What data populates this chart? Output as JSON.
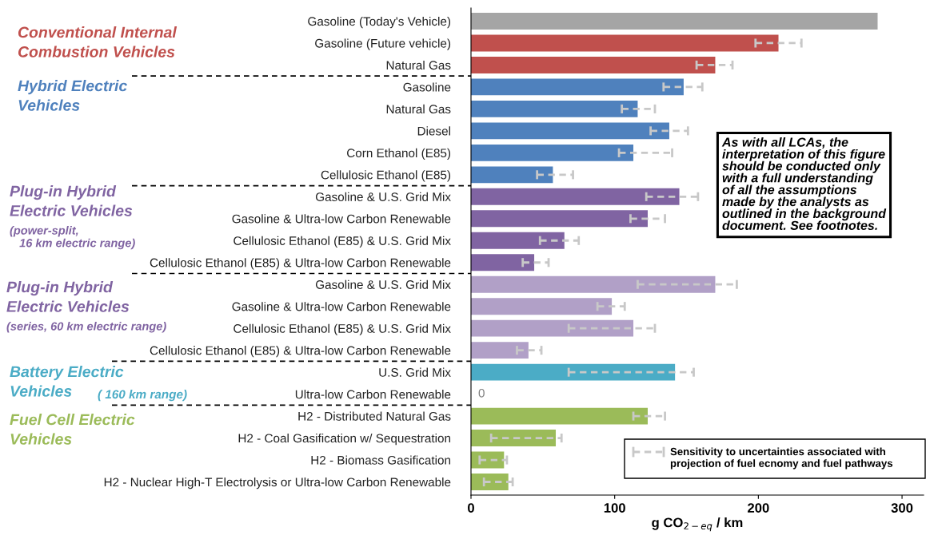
{
  "chart_data": {
    "type": "bar",
    "orientation": "horizontal",
    "categories": [
      "Gasoline (Today's Vehicle)",
      "Gasoline (Future vehicle)",
      "Natural Gas",
      "Gasoline",
      "Natural Gas",
      "Diesel",
      "Corn Ethanol (E85)",
      "Cellulosic Ethanol (E85)",
      "Gasoline & U.S. Grid Mix",
      "Gasoline & Ultra-low Carbon Renewable",
      "Cellulosic Ethanol (E85) & U.S. Grid Mix",
      "Cellulosic Ethanol (E85) & Ultra-low Carbon Renewable",
      "Gasoline & U.S. Grid Mix",
      "Gasoline & Ultra-low Carbon Renewable",
      "Cellulosic Ethanol (E85) & U.S. Grid Mix",
      "Cellulosic Ethanol (E85) & Ultra-low Carbon Renewable",
      "U.S. Grid Mix",
      "Ultra-low Carbon Renewable",
      "H2 - Distributed Natural Gas",
      "H2 - Coal Gasification w/ Sequestration",
      "H2 - Biomass Gasification",
      "H2 - Nuclear High-T Electrolysis or Ultra-low Carbon Renewable"
    ],
    "values": [
      283,
      214,
      170,
      148,
      116,
      138,
      113,
      57,
      145,
      123,
      65,
      44,
      170,
      98,
      113,
      40,
      142,
      0,
      123,
      59,
      23,
      26
    ],
    "errors": [
      null,
      [
        198,
        230
      ],
      [
        157,
        182
      ],
      [
        134,
        161
      ],
      [
        105,
        128
      ],
      [
        125,
        151
      ],
      [
        103,
        140
      ],
      [
        46,
        71
      ],
      [
        122,
        158
      ],
      [
        111,
        135
      ],
      [
        48,
        75
      ],
      [
        36,
        54
      ],
      [
        116,
        185
      ],
      [
        88,
        107
      ],
      [
        68,
        128
      ],
      [
        32,
        49
      ],
      [
        68,
        155
      ],
      null,
      [
        113,
        135
      ],
      [
        14,
        63
      ],
      [
        6,
        25
      ],
      [
        9,
        29
      ]
    ],
    "colors": [
      "#a5a5a5",
      "#c0504d",
      "#c0504d",
      "#4f81bd",
      "#4f81bd",
      "#4f81bd",
      "#4f81bd",
      "#4f81bd",
      "#8064a2",
      "#8064a2",
      "#8064a2",
      "#8064a2",
      "#b1a0c7",
      "#b1a0c7",
      "#b1a0c7",
      "#b1a0c7",
      "#4bacc6",
      "#4bacc6",
      "#9bbb59",
      "#9bbb59",
      "#9bbb59",
      "#9bbb59"
    ],
    "value_labels": [
      null,
      null,
      null,
      null,
      null,
      null,
      null,
      null,
      null,
      null,
      null,
      null,
      null,
      null,
      null,
      null,
      null,
      "0",
      null,
      null,
      null,
      null
    ],
    "xlim": [
      0,
      315
    ],
    "xticks": [
      0,
      100,
      200,
      300
    ],
    "xlabel": "g CO$_{2−eq}$ / km",
    "annotations": [
      "Conventional Internal\nCombustion Vehicles",
      "Hybrid Electric\nVehicles",
      "Plug-in Hybrid\nElectric Vehicles",
      "(power-split,\n   16 km electric range)",
      "Plug-in Hybrid\nElectric Vehicles",
      "(series, 60 km electric range)",
      "Battery Electric\nVehicles",
      "( 160 km range)",
      "Fuel Cell Electric\nVehicles",
      "As with all LCAs, the\ninterpretation of this figure\nshould be conducted only\nwith a full understanding\nof all the assumptions\nmade by the analysts as\noutlined in the background\ndocument. See footnotes.",
      "Sensitivity to uncertainties associated with\nprojection of fuel ecnomy and fuel pathways"
    ]
  }
}
